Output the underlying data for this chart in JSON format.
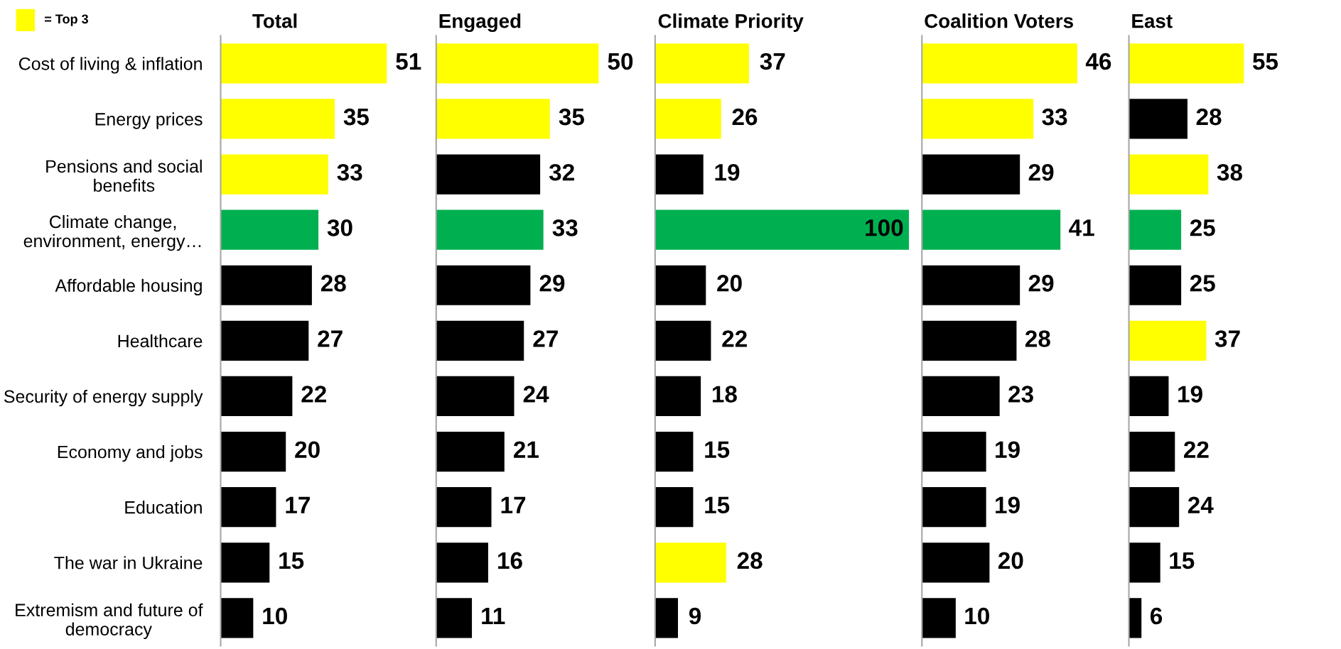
{
  "chart_data": [
    {
      "type": "bar",
      "orientation": "horizontal",
      "title": "Total",
      "categories": [
        "Cost of living & inflation",
        "Energy prices",
        "Pensions and social benefits",
        "Climate change, environment, energy…",
        "Affordable housing",
        "Healthcare",
        "Security of energy supply",
        "Economy and jobs",
        "Education",
        "The war in Ukraine",
        "Extremism and future of democracy"
      ],
      "values": [
        51,
        35,
        33,
        30,
        28,
        27,
        22,
        20,
        17,
        15,
        10
      ],
      "colors": [
        "#ffff00",
        "#ffff00",
        "#ffff00",
        "#00b050",
        "#000000",
        "#000000",
        "#000000",
        "#000000",
        "#000000",
        "#000000",
        "#000000"
      ],
      "data_labels": true,
      "tick_labels": "y",
      "annotations": [
        "= Top 3"
      ]
    },
    {
      "type": "bar",
      "orientation": "horizontal",
      "title": "Engaged",
      "categories": [
        null,
        null,
        null,
        null,
        null,
        null,
        null,
        null,
        null,
        null,
        null
      ],
      "values": [
        50,
        35,
        32,
        33,
        29,
        27,
        24,
        21,
        17,
        16,
        11
      ],
      "colors": [
        "#ffff00",
        "#ffff00",
        "#000000",
        "#00b050",
        "#000000",
        "#000000",
        "#000000",
        "#000000",
        "#000000",
        "#000000",
        "#000000"
      ],
      "data_labels": true,
      "tick_labels": false
    },
    {
      "type": "bar",
      "orientation": "horizontal",
      "title": "Climate Priority",
      "categories": [
        null,
        null,
        null,
        null,
        null,
        null,
        null,
        null,
        null,
        null,
        null
      ],
      "values": [
        37,
        26,
        19,
        100,
        20,
        22,
        18,
        15,
        15,
        28,
        9
      ],
      "colors": [
        "#ffff00",
        "#ffff00",
        "#000000",
        "#00b050",
        "#000000",
        "#000000",
        "#000000",
        "#000000",
        "#000000",
        "#ffff00",
        "#000000"
      ],
      "data_labels": true,
      "tick_labels": false
    },
    {
      "type": "bar",
      "orientation": "horizontal",
      "title": "Coalition Voters",
      "categories": [
        null,
        null,
        null,
        null,
        null,
        null,
        null,
        null,
        null,
        null,
        null
      ],
      "values": [
        46,
        33,
        29,
        41,
        29,
        28,
        23,
        19,
        19,
        20,
        10
      ],
      "colors": [
        "#ffff00",
        "#ffff00",
        "#000000",
        "#00b050",
        "#000000",
        "#000000",
        "#000000",
        "#000000",
        "#000000",
        "#000000",
        "#000000"
      ],
      "data_labels": true,
      "tick_labels": false
    },
    {
      "type": "bar",
      "orientation": "horizontal",
      "title": "East",
      "categories": [
        null,
        null,
        null,
        null,
        null,
        null,
        null,
        null,
        null,
        null,
        null
      ],
      "values": [
        55,
        28,
        38,
        25,
        25,
        37,
        19,
        22,
        24,
        15,
        6
      ],
      "colors": [
        "#ffff00",
        "#000000",
        "#ffff00",
        "#00b050",
        "#000000",
        "#ffff00",
        "#000000",
        "#000000",
        "#000000",
        "#000000",
        "#000000"
      ],
      "data_labels": true,
      "tick_labels": false
    }
  ]
}
